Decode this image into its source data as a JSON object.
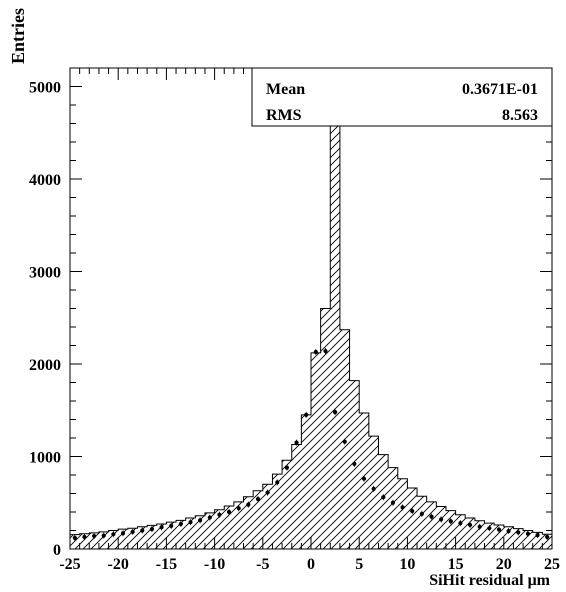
{
  "chart_data": {
    "type": "bar",
    "ylabel": "Entries",
    "xlabel": "SiHit residual  μm",
    "xlim": [
      -25,
      25
    ],
    "ylim": [
      0,
      5200
    ],
    "xticks": [
      "-25",
      "-20",
      "-15",
      "-10",
      "-5",
      "0",
      "5",
      "10",
      "15",
      "20",
      "25"
    ],
    "yticks": [
      "0",
      "1000",
      "2000",
      "3000",
      "4000",
      "5000"
    ],
    "bin_width": 1,
    "bin_edges_start": -25,
    "histogram_values": [
      155,
      165,
      175,
      185,
      200,
      215,
      225,
      240,
      255,
      270,
      290,
      310,
      335,
      360,
      390,
      425,
      465,
      510,
      565,
      630,
      700,
      810,
      960,
      1130,
      1450,
      2120,
      2600,
      4680,
      2370,
      1820,
      1470,
      1220,
      1020,
      880,
      760,
      660,
      570,
      510,
      460,
      415,
      370,
      335,
      305,
      280,
      260,
      240,
      220,
      200,
      180,
      160
    ],
    "points": [
      {
        "x": -24.5,
        "y": 120
      },
      {
        "x": -23.5,
        "y": 130
      },
      {
        "x": -22.5,
        "y": 140
      },
      {
        "x": -21.5,
        "y": 145
      },
      {
        "x": -20.5,
        "y": 160
      },
      {
        "x": -19.5,
        "y": 170
      },
      {
        "x": -18.5,
        "y": 185
      },
      {
        "x": -17.5,
        "y": 200
      },
      {
        "x": -16.5,
        "y": 215
      },
      {
        "x": -15.5,
        "y": 235
      },
      {
        "x": -14.5,
        "y": 250
      },
      {
        "x": -13.5,
        "y": 270
      },
      {
        "x": -12.5,
        "y": 290
      },
      {
        "x": -11.5,
        "y": 310
      },
      {
        "x": -10.5,
        "y": 340
      },
      {
        "x": -9.5,
        "y": 370
      },
      {
        "x": -8.5,
        "y": 400
      },
      {
        "x": -7.5,
        "y": 440
      },
      {
        "x": -6.5,
        "y": 480
      },
      {
        "x": -5.5,
        "y": 540
      },
      {
        "x": -4.5,
        "y": 610
      },
      {
        "x": -3.5,
        "y": 720
      },
      {
        "x": -2.5,
        "y": 880
      },
      {
        "x": -1.5,
        "y": 1150
      },
      {
        "x": -0.5,
        "y": 1450
      },
      {
        "x": 0.5,
        "y": 2130
      },
      {
        "x": 1.5,
        "y": 2140
      },
      {
        "x": 2.5,
        "y": 1480
      },
      {
        "x": 3.5,
        "y": 1160
      },
      {
        "x": 4.5,
        "y": 920
      },
      {
        "x": 5.5,
        "y": 760
      },
      {
        "x": 6.5,
        "y": 650
      },
      {
        "x": 7.5,
        "y": 560
      },
      {
        "x": 8.5,
        "y": 500
      },
      {
        "x": 9.5,
        "y": 450
      },
      {
        "x": 10.5,
        "y": 410
      },
      {
        "x": 11.5,
        "y": 380
      },
      {
        "x": 12.5,
        "y": 350
      },
      {
        "x": 13.5,
        "y": 320
      },
      {
        "x": 14.5,
        "y": 300
      },
      {
        "x": 15.5,
        "y": 280
      },
      {
        "x": 16.5,
        "y": 260
      },
      {
        "x": 17.5,
        "y": 240
      },
      {
        "x": 18.5,
        "y": 225
      },
      {
        "x": 19.5,
        "y": 210
      },
      {
        "x": 20.5,
        "y": 195
      },
      {
        "x": 21.5,
        "y": 180
      },
      {
        "x": 22.5,
        "y": 165
      },
      {
        "x": 23.5,
        "y": 150
      },
      {
        "x": 24.5,
        "y": 130
      }
    ],
    "stats": [
      {
        "label": "Mean",
        "value": "0.3671E-01"
      },
      {
        "label": "RMS",
        "value": "8.563"
      }
    ],
    "fill_pattern": "diagonal-hatch",
    "grid": false
  }
}
